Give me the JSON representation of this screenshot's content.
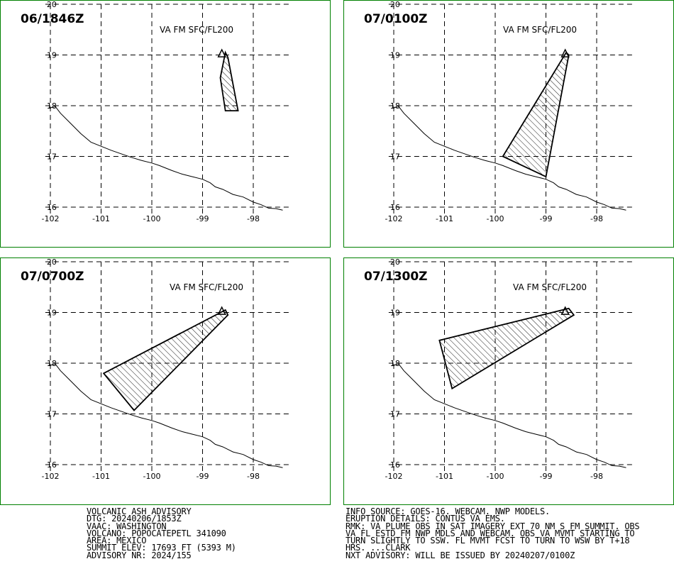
{
  "panels": [
    {
      "time": "06/1846Z",
      "label": "VA FM SFC/FL200",
      "polygon": [
        [
          -98.55,
          19.05
        ],
        [
          -98.5,
          18.95
        ],
        [
          -98.3,
          17.9
        ],
        [
          -98.55,
          17.9
        ],
        [
          -98.65,
          18.55
        ],
        [
          -98.55,
          19.05
        ]
      ]
    },
    {
      "time": "07/0100Z",
      "label": "VA FM SFC/FL200",
      "polygon": [
        [
          -98.6,
          19.05
        ],
        [
          -98.55,
          19.0
        ],
        [
          -99.0,
          16.6
        ],
        [
          -99.85,
          17.0
        ],
        [
          -98.6,
          19.05
        ]
      ]
    },
    {
      "time": "07/0700Z",
      "label": "VA FM SFC/FL200",
      "polygon": [
        [
          -98.55,
          19.05
        ],
        [
          -98.5,
          18.95
        ],
        [
          -100.35,
          17.07
        ],
        [
          -100.95,
          17.8
        ],
        [
          -98.55,
          19.05
        ]
      ]
    },
    {
      "time": "07/1300Z",
      "label": "VA FM SFC/FL200",
      "polygon": [
        [
          -98.55,
          19.08
        ],
        [
          -98.45,
          18.95
        ],
        [
          -100.85,
          17.5
        ],
        [
          -101.1,
          18.45
        ],
        [
          -98.55,
          19.08
        ]
      ]
    }
  ],
  "axes": {
    "x_ticks": [
      -102,
      -101,
      -100,
      -99,
      -98
    ],
    "y_ticks": [
      16,
      17,
      18,
      19,
      20
    ],
    "x_range": [
      -102.1,
      -97.3
    ],
    "y_range": [
      15.9,
      20.0
    ],
    "grid": true
  },
  "coastline": [
    [
      -102.05,
      17.95
    ],
    [
      -101.9,
      17.98
    ],
    [
      -101.8,
      17.85
    ],
    [
      -101.6,
      17.65
    ],
    [
      -101.4,
      17.45
    ],
    [
      -101.2,
      17.28
    ],
    [
      -101.0,
      17.2
    ],
    [
      -100.8,
      17.12
    ],
    [
      -100.6,
      17.05
    ],
    [
      -100.4,
      16.98
    ],
    [
      -100.2,
      16.92
    ],
    [
      -100.0,
      16.87
    ],
    [
      -99.85,
      16.82
    ],
    [
      -99.75,
      16.78
    ],
    [
      -99.6,
      16.72
    ],
    [
      -99.4,
      16.65
    ],
    [
      -99.2,
      16.6
    ],
    [
      -99.0,
      16.55
    ],
    [
      -98.85,
      16.48
    ],
    [
      -98.75,
      16.4
    ],
    [
      -98.6,
      16.35
    ],
    [
      -98.4,
      16.25
    ],
    [
      -98.2,
      16.2
    ],
    [
      -98.0,
      16.1
    ],
    [
      -97.85,
      16.05
    ],
    [
      -97.7,
      15.98
    ],
    [
      -97.55,
      15.97
    ],
    [
      -97.42,
      15.94
    ]
  ],
  "volcano": {
    "lon": -98.62,
    "lat": 19.02
  },
  "advisory_left": [
    "VOLCANIC ASH ADVISORY",
    "DTG: 20240206/1853Z",
    "VAAC: WASHINGTON",
    "VOLCANO: POPOCATEPETL 341090",
    "AREA: MEXICO",
    "SUMMIT ELEV: 17693 FT (5393 M)",
    "ADVISORY NR: 2024/155"
  ],
  "advisory_right": [
    "INFO SOURCE: GOES-16. WEBCAM. NWP MODELS.",
    "ERUPTION DETAILS: CONTUS VA EMS.",
    "RMK: VA PLUME OBS IN SAT IMAGERY EXT 70 NM S FM SUMMIT. OBS",
    "VA FL ESTD FM NWP MDLS AND WEBCAM. OBS VA MVMT STARTING TO",
    "TURN SLIGHTLY TO SSW. FL MVMT FCST TO TURN TO WSW BY T+18",
    "HRS. ...CLARK",
    "NXT ADVISORY: WILL BE ISSUED BY 20240207/0100Z"
  ],
  "colors": {
    "frame": "#008000",
    "ink": "#000000",
    "background": "#ffffff"
  }
}
